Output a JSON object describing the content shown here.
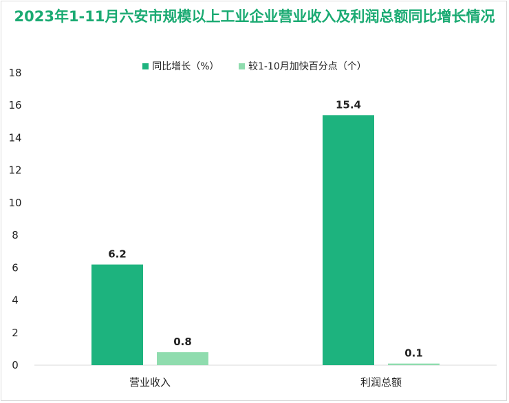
{
  "title": "2023年1-11月六安市规模以上工业企业营业收入及利润总额同比增长情况",
  "colors": {
    "title": "#1aaa72",
    "series1": "#1db37e",
    "series2": "#8fdcae",
    "axis": "#d9d9d9"
  },
  "chart_data": {
    "type": "bar",
    "title": "2023年1-11月六安市规模以上工业企业营业收入及利润总额同比增长情况",
    "categories": [
      "营业收入",
      "利润总额"
    ],
    "series": [
      {
        "name": "同比增长（%）",
        "values": [
          6.2,
          15.4
        ]
      },
      {
        "name": "较1-10月加快百分点（个）",
        "values": [
          0.8,
          0.1
        ]
      }
    ],
    "yticks": [
      "0",
      "2",
      "4",
      "6",
      "8",
      "10",
      "12",
      "14",
      "16",
      "18"
    ],
    "ylim": [
      0,
      18
    ],
    "grid": false,
    "legend": "top-center"
  }
}
